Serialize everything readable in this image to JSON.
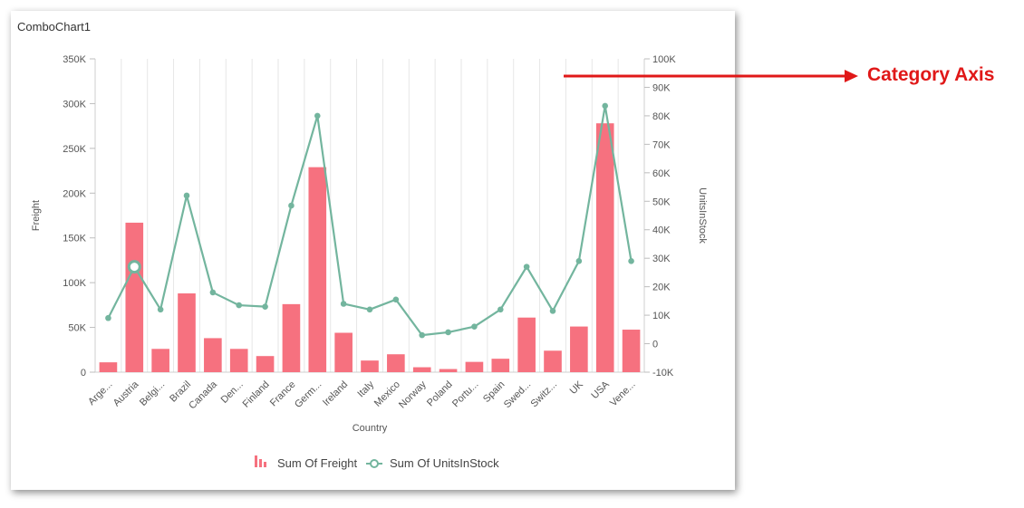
{
  "widget": {
    "title": "ComboChart1"
  },
  "annotation": {
    "label": "Category Axis",
    "color": "#e01818"
  },
  "chart_data": {
    "type": "bar",
    "categories": [
      "Arge...",
      "Austria",
      "Belgi...",
      "Brazil",
      "Canada",
      "Den...",
      "Finland",
      "France",
      "Germ...",
      "Ireland",
      "Italy",
      "Mexico",
      "Norway",
      "Poland",
      "Portu...",
      "Spain",
      "Swed...",
      "Switz...",
      "UK",
      "USA",
      "Vene..."
    ],
    "xlabel": "Country",
    "series": [
      {
        "name": "Sum Of Freight",
        "type": "bar",
        "axis": "left",
        "color": "#f6717f",
        "values": [
          11000,
          167000,
          26000,
          88000,
          38000,
          26000,
          18000,
          76000,
          229000,
          44000,
          13000,
          20000,
          5500,
          3500,
          11500,
          15000,
          61000,
          24000,
          51000,
          278000,
          47500
        ]
      },
      {
        "name": "Sum Of UnitsInStock",
        "type": "line",
        "axis": "right",
        "color": "#73b59e",
        "values": [
          9000,
          27000,
          12000,
          52000,
          18000,
          13500,
          13000,
          48500,
          80000,
          14000,
          12000,
          15500,
          3000,
          4000,
          6000,
          12000,
          27000,
          11500,
          29000,
          83500,
          29000
        ]
      }
    ],
    "y_left": {
      "label": "Freight",
      "min": 0,
      "max": 350000,
      "ticks": [
        0,
        50000,
        100000,
        150000,
        200000,
        250000,
        300000,
        350000
      ],
      "tick_labels": [
        "0",
        "50K",
        "100K",
        "150K",
        "200K",
        "250K",
        "300K",
        "350K"
      ]
    },
    "y_right": {
      "label": "UnitsInStock",
      "min": -10000,
      "max": 100000,
      "ticks": [
        -10000,
        0,
        10000,
        20000,
        30000,
        40000,
        50000,
        60000,
        70000,
        80000,
        90000,
        100000
      ],
      "tick_labels": [
        "-10K",
        "0",
        "10K",
        "20K",
        "30K",
        "40K",
        "50K",
        "60K",
        "70K",
        "80K",
        "90K",
        "100K"
      ]
    },
    "highlighted_point": {
      "series": "Sum Of UnitsInStock",
      "category": "Austria"
    },
    "grid": "vertical",
    "legend_position": "bottom-center"
  }
}
